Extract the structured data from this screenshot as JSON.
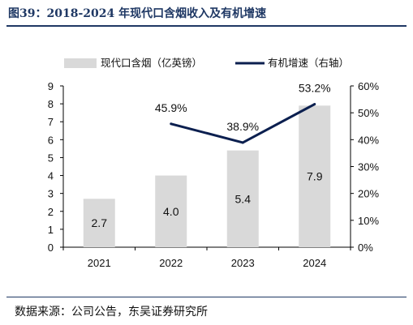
{
  "figure": {
    "title": "图39：2018-2024 年现代口含烟收入及有机增速",
    "source": "数据来源：公司公告，东吴证券研究所"
  },
  "chart_data": {
    "type": "bar",
    "categories": [
      "2021",
      "2022",
      "2023",
      "2024"
    ],
    "series": [
      {
        "name": "现代口含烟（亿英镑）",
        "type": "bar",
        "axis": "left",
        "values": [
          2.7,
          4.0,
          5.4,
          7.9
        ],
        "labels": [
          "2.7",
          "4.0",
          "5.4",
          "7.9"
        ],
        "color": "#d9d9d9"
      },
      {
        "name": "有机增速（右轴）",
        "type": "line",
        "axis": "right",
        "values": [
          null,
          45.9,
          38.9,
          53.2
        ],
        "labels": [
          "",
          "45.9%",
          "38.9%",
          "53.2%"
        ],
        "color": "#0b1f4f"
      }
    ],
    "y_left": {
      "min": 0,
      "max": 9,
      "ticks": [
        "0",
        "1",
        "2",
        "3",
        "4",
        "5",
        "6",
        "7",
        "8",
        "9"
      ]
    },
    "y_right": {
      "min": 0,
      "max": 60,
      "ticks": [
        "0%",
        "10%",
        "20%",
        "30%",
        "40%",
        "50%",
        "60%"
      ]
    },
    "grid": false,
    "legend": "top"
  }
}
